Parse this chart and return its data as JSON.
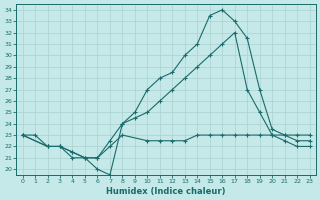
{
  "xlabel": "Humidex (Indice chaleur)",
  "xlim": [
    -0.5,
    23.5
  ],
  "ylim": [
    19.5,
    34.5
  ],
  "xticks": [
    0,
    1,
    2,
    3,
    4,
    5,
    6,
    7,
    8,
    9,
    10,
    11,
    12,
    13,
    14,
    15,
    16,
    17,
    18,
    19,
    20,
    21,
    22,
    23
  ],
  "yticks": [
    20,
    21,
    22,
    23,
    24,
    25,
    26,
    27,
    28,
    29,
    30,
    31,
    32,
    33,
    34
  ],
  "background_color": "#c5e8e8",
  "line_color": "#1a6b6b",
  "grid_color": "#aad0d0",
  "line1_x": [
    0,
    1,
    2,
    3,
    4,
    5,
    6,
    7,
    8,
    10,
    11,
    12,
    13,
    14,
    15,
    16,
    17,
    18,
    19,
    20,
    21,
    22,
    23
  ],
  "line1_y": [
    23,
    23,
    22,
    22,
    21,
    21,
    21,
    22,
    23,
    22.5,
    22.5,
    22.5,
    22.5,
    23,
    23,
    23,
    23,
    23,
    23,
    23,
    23,
    23,
    23
  ],
  "line2_x": [
    0,
    2,
    3,
    4,
    5,
    6,
    7,
    8,
    9,
    10,
    11,
    12,
    13,
    14,
    15,
    16,
    17,
    18,
    19,
    20,
    21,
    22,
    23
  ],
  "line2_y": [
    23,
    22,
    22,
    21.5,
    21,
    20,
    19.5,
    24,
    25,
    27,
    28,
    28.5,
    30,
    31,
    33.5,
    34,
    33,
    31.5,
    27,
    23.5,
    23,
    22.5,
    22.5
  ],
  "line3_x": [
    0,
    2,
    3,
    4,
    5,
    6,
    7,
    8,
    9,
    10,
    11,
    12,
    13,
    14,
    15,
    16,
    17,
    18,
    19,
    20,
    21,
    22,
    23
  ],
  "line3_y": [
    23,
    22,
    22,
    21.5,
    21,
    21,
    22.5,
    24,
    24.5,
    25,
    26,
    27,
    28,
    29,
    30,
    31,
    32,
    27,
    25,
    23,
    22.5,
    22,
    22
  ],
  "marker": "+",
  "markersize": 3.5,
  "linewidth": 0.8
}
